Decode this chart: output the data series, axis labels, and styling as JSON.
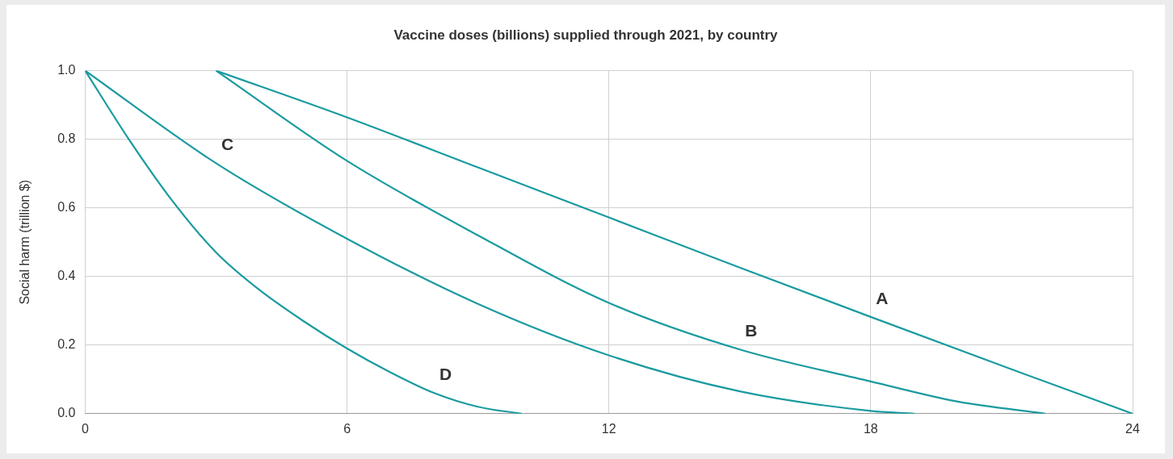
{
  "chart_data": {
    "type": "line",
    "title": "Vaccine doses (billions) supplied through 2021, by country",
    "ylabel": "Social harm (trillion $)",
    "xlim": [
      0,
      24
    ],
    "xticks": [
      0,
      6,
      12,
      18,
      24
    ],
    "ylim": [
      0,
      1
    ],
    "yticks": [
      {
        "value": 0,
        "label": "0.0"
      },
      {
        "value": 0.2,
        "label": "0.2"
      },
      {
        "value": 0.4,
        "label": "0.4"
      },
      {
        "value": 0.6,
        "label": "0.6"
      },
      {
        "value": 0.8,
        "label": "0.8"
      },
      {
        "value": 1,
        "label": "1.0"
      }
    ],
    "grid": true,
    "marker": "none",
    "line_style": "solid",
    "series": [
      {
        "name": "A",
        "color": "#1a9ba0",
        "x": [
          3,
          6,
          9,
          12,
          15,
          18,
          21,
          24
        ],
        "values": [
          1,
          0.864,
          0.718,
          0.572,
          0.426,
          0.282,
          0.14,
          0
        ]
      },
      {
        "name": "B",
        "color": "#1a9ba0",
        "x": [
          3,
          6,
          9,
          12,
          15,
          18,
          20,
          22
        ],
        "values": [
          1,
          0.737,
          0.52,
          0.323,
          0.187,
          0.094,
          0.035,
          0
        ]
      },
      {
        "name": "C",
        "color": "#1a9ba0",
        "x": [
          0,
          3,
          6,
          9,
          12,
          15,
          18,
          19
        ],
        "values": [
          1,
          0.73,
          0.51,
          0.32,
          0.17,
          0.065,
          0.008,
          0
        ]
      },
      {
        "name": "D",
        "color": "#1a9ba0",
        "x": [
          0,
          1,
          2,
          3,
          4,
          5,
          6,
          7,
          8,
          9,
          10
        ],
        "values": [
          1,
          0.8,
          0.62,
          0.47,
          0.36,
          0.27,
          0.19,
          0.12,
          0.06,
          0.02,
          0
        ]
      }
    ]
  }
}
